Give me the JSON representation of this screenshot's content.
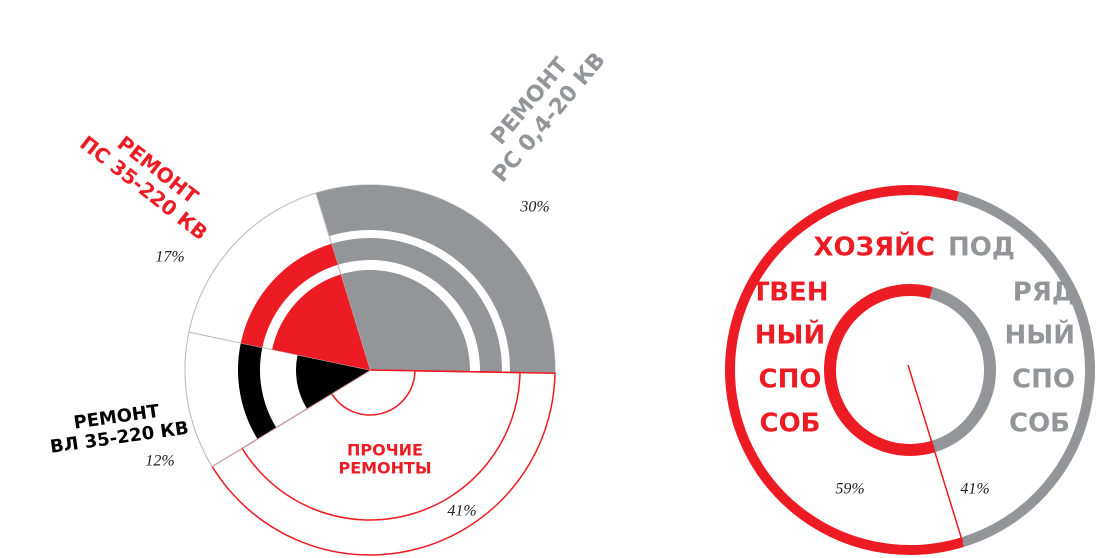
{
  "chart_data": [
    {
      "type": "radial",
      "categories": [
        [
          "РЕМОНТ",
          "РС 0,4-20 КВ"
        ],
        [
          "ПРОЧИЕ",
          "РЕМОНТЫ"
        ],
        [
          "РЕМОНТ",
          "ВЛ 35-220 КВ"
        ],
        [
          "РЕМОНТ",
          "ПС 35-220 КВ"
        ]
      ],
      "values": [
        30,
        41,
        12,
        17
      ],
      "value_labels": [
        "30%",
        "41%",
        "12%",
        "17%"
      ],
      "colors": [
        "#939598",
        "#ffffff",
        "#000000",
        "#ed1c24"
      ]
    },
    {
      "type": "donut",
      "categories": [
        [
          "ХОЗЯЙС",
          "ТВЕН",
          "НЫЙ",
          "СПО",
          "СОБ"
        ],
        [
          "ПОД",
          "РЯД",
          "НЫЙ",
          "СПО",
          "СОБ"
        ]
      ],
      "values": [
        59,
        41
      ],
      "value_labels": [
        "59%",
        "41%"
      ],
      "colors": [
        "#ed1c24",
        "#939598"
      ]
    }
  ]
}
